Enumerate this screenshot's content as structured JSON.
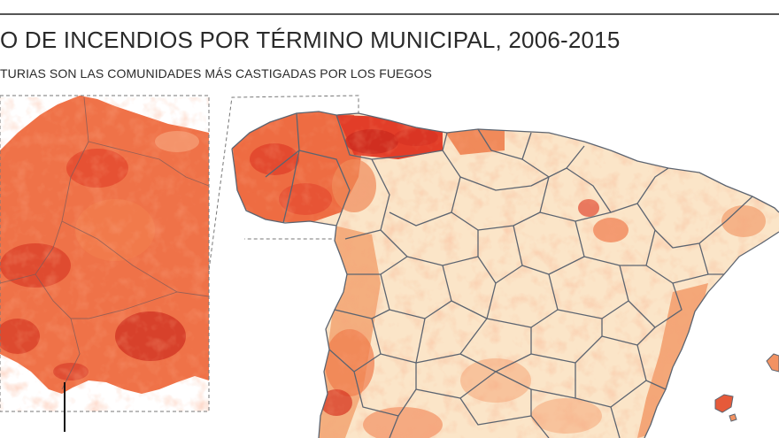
{
  "title": "O DE INCENDIOS POR TÉRMINO MUNICIPAL, 2006-2015",
  "subtitle": "TURIAS SON LAS COMUNIDADES MÁS CASTIGADAS POR LOS FUEGOS",
  "colors": {
    "light": "#fbe6cc",
    "low": "#f8cfa4",
    "mid": "#f39c6a",
    "high": "#ea5a3a",
    "max": "#cc2a1e",
    "border": "#5c6470",
    "rule": "#555555"
  }
}
